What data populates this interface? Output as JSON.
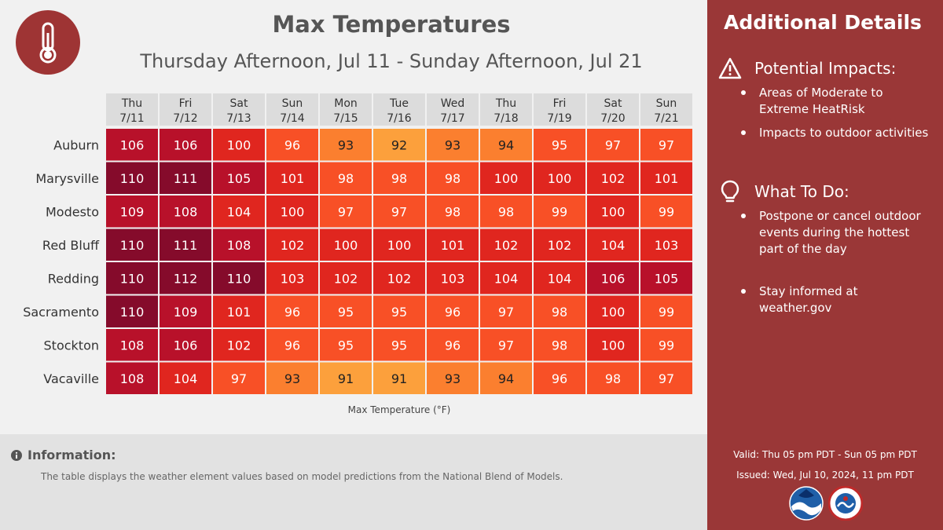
{
  "header": {
    "title": "Max Temperatures",
    "subtitle": "Thursday Afternoon, Jul 11 - Sunday Afternoon, Jul 21",
    "icon": "thermometer-icon"
  },
  "chart_data": {
    "type": "table",
    "title": "Max Temperatures",
    "xlabel": "Max Temperature (°F)",
    "columns": [
      {
        "day": "Thu",
        "date": "7/11"
      },
      {
        "day": "Fri",
        "date": "7/12"
      },
      {
        "day": "Sat",
        "date": "7/13"
      },
      {
        "day": "Sun",
        "date": "7/14"
      },
      {
        "day": "Mon",
        "date": "7/15"
      },
      {
        "day": "Tue",
        "date": "7/16"
      },
      {
        "day": "Wed",
        "date": "7/17"
      },
      {
        "day": "Thu",
        "date": "7/18"
      },
      {
        "day": "Fri",
        "date": "7/19"
      },
      {
        "day": "Sat",
        "date": "7/20"
      },
      {
        "day": "Sun",
        "date": "7/21"
      }
    ],
    "rows": [
      {
        "city": "Auburn",
        "values": [
          106,
          106,
          100,
          96,
          93,
          92,
          93,
          94,
          95,
          97,
          97
        ]
      },
      {
        "city": "Marysville",
        "values": [
          110,
          111,
          105,
          101,
          98,
          98,
          98,
          100,
          100,
          102,
          101
        ]
      },
      {
        "city": "Modesto",
        "values": [
          109,
          108,
          104,
          100,
          97,
          97,
          98,
          98,
          99,
          100,
          99
        ]
      },
      {
        "city": "Red Bluff",
        "values": [
          110,
          111,
          108,
          102,
          100,
          100,
          101,
          102,
          102,
          104,
          103
        ]
      },
      {
        "city": "Redding",
        "values": [
          110,
          112,
          110,
          103,
          102,
          102,
          103,
          104,
          104,
          106,
          105
        ]
      },
      {
        "city": "Sacramento",
        "values": [
          110,
          109,
          101,
          96,
          95,
          95,
          96,
          97,
          98,
          100,
          99
        ]
      },
      {
        "city": "Stockton",
        "values": [
          108,
          106,
          102,
          96,
          95,
          95,
          96,
          97,
          98,
          100,
          99
        ]
      },
      {
        "city": "Vacaville",
        "values": [
          108,
          104,
          97,
          93,
          91,
          91,
          93,
          94,
          96,
          98,
          97
        ]
      }
    ],
    "colors": {
      "header_bg": "#dcdcdc",
      "scale": [
        {
          "min": 110,
          "color": "#850b2b",
          "text": "#ffffff"
        },
        {
          "min": 105,
          "color": "#b8112a",
          "text": "#ffffff"
        },
        {
          "min": 100,
          "color": "#e0261f",
          "text": "#ffffff"
        },
        {
          "min": 95,
          "color": "#f85026",
          "text": "#ffffff"
        },
        {
          "min": 93,
          "color": "#fb7f2f",
          "text": "#222222"
        },
        {
          "min": 90,
          "color": "#fca03c",
          "text": "#222222"
        }
      ]
    }
  },
  "info": {
    "title": "Information:",
    "text": "The table displays the weather element values based on model predictions from the National Blend of Models."
  },
  "sidebar": {
    "title": "Additional Details",
    "impacts": {
      "heading": "Potential Impacts:",
      "icon": "warning-icon",
      "items": [
        "Areas of Moderate to Extreme HeatRisk",
        "Impacts to outdoor activities"
      ]
    },
    "todo": {
      "heading": "What To Do:",
      "icon": "lightbulb-icon",
      "items": [
        "Postpone or cancel outdoor events during the hottest part of the day",
        "Stay informed at weather.gov"
      ]
    },
    "valid": "Valid: Thu 05 pm PDT - Sun 05 pm PDT",
    "issued": "Issued: Wed, Jul 10, 2024, 11 pm PDT",
    "logos": [
      "noaa-logo",
      "nws-logo"
    ]
  },
  "theme": {
    "accent": "#9a3737",
    "background": "#f1f1f1",
    "info_bg": "#e2e2e2"
  }
}
